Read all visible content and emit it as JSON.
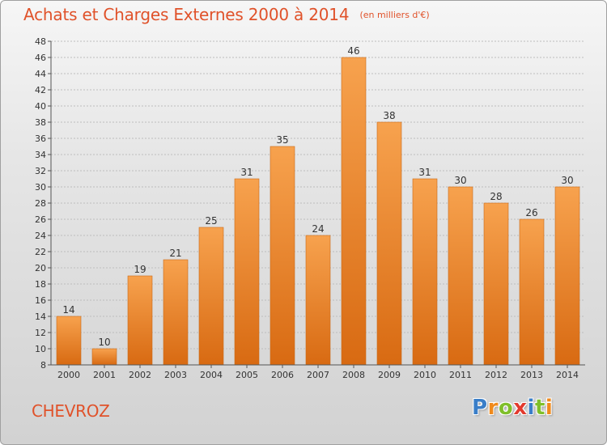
{
  "header": {
    "title": "Achats et Charges Externes 2000 à 2014",
    "subtitle": "(en milliers d'€)"
  },
  "footer": {
    "location": "CHEVROZ",
    "brand_letters": [
      "P",
      "r",
      "o",
      "x",
      "i",
      "t",
      "i"
    ],
    "brand_colors": [
      "#3a7ec8",
      "#f08a1c",
      "#7fbf2a",
      "#e23a2e",
      "#3a7ec8",
      "#7fbf2a",
      "#f08a1c"
    ]
  },
  "colors": {
    "accent": "#e0522a",
    "bar_top": "#f7a24e",
    "bar_bottom": "#d86a12",
    "grid": "#bdbdbd",
    "axis": "#555555",
    "text": "#333333"
  },
  "chart_data": {
    "type": "bar",
    "categories": [
      "2000",
      "2001",
      "2002",
      "2003",
      "2004",
      "2005",
      "2006",
      "2007",
      "2008",
      "2009",
      "2010",
      "2011",
      "2012",
      "2013",
      "2014"
    ],
    "values": [
      14,
      10,
      19,
      21,
      25,
      31,
      35,
      24,
      46,
      38,
      31,
      30,
      28,
      26,
      30
    ],
    "title": "Achats et Charges Externes 2000 à 2014",
    "subtitle": "(en milliers d'€)",
    "xlabel": "",
    "ylabel": "",
    "ylim": [
      8,
      48
    ],
    "yticks": [
      8,
      10,
      12,
      14,
      16,
      18,
      20,
      22,
      24,
      26,
      28,
      30,
      32,
      34,
      36,
      38,
      40,
      42,
      44,
      46,
      48
    ],
    "grid": true,
    "data_labels": true
  }
}
